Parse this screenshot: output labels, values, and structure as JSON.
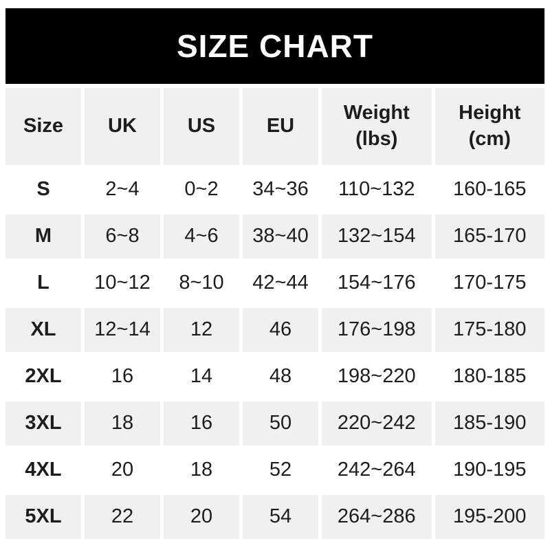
{
  "title": "SIZE CHART",
  "colors": {
    "banner_bg": "#000000",
    "banner_text": "#ffffff",
    "shaded_row_bg": "#f0f0f1",
    "row_bg": "#ffffff",
    "text": "#1d1d1f",
    "page_bg": "#ffffff"
  },
  "table": {
    "headers": [
      "Size",
      "UK",
      "US",
      "EU",
      "Weight\n(lbs)",
      "Height\n(cm)"
    ],
    "rows": [
      {
        "size": "S",
        "uk": "2~4",
        "us": "0~2",
        "eu": "34~36",
        "weight": "110~132",
        "height": "160-165"
      },
      {
        "size": "M",
        "uk": "6~8",
        "us": "4~6",
        "eu": "38~40",
        "weight": "132~154",
        "height": "165-170"
      },
      {
        "size": "L",
        "uk": "10~12",
        "us": "8~10",
        "eu": "42~44",
        "weight": "154~176",
        "height": "170-175"
      },
      {
        "size": "XL",
        "uk": "12~14",
        "us": "12",
        "eu": "46",
        "weight": "176~198",
        "height": "175-180"
      },
      {
        "size": "2XL",
        "uk": "16",
        "us": "14",
        "eu": "48",
        "weight": "198~220",
        "height": "180-185"
      },
      {
        "size": "3XL",
        "uk": "18",
        "us": "16",
        "eu": "50",
        "weight": "220~242",
        "height": "185-190"
      },
      {
        "size": "4XL",
        "uk": "20",
        "us": "18",
        "eu": "52",
        "weight": "242~264",
        "height": "190-195"
      },
      {
        "size": "5XL",
        "uk": "22",
        "us": "20",
        "eu": "54",
        "weight": "264~286",
        "height": "195-200"
      }
    ]
  },
  "chart_data": {
    "type": "table",
    "title": "SIZE CHART",
    "columns": [
      "Size",
      "UK",
      "US",
      "EU",
      "Weight (lbs)",
      "Height (cm)"
    ],
    "rows": [
      [
        "S",
        "2~4",
        "0~2",
        "34~36",
        "110~132",
        "160-165"
      ],
      [
        "M",
        "6~8",
        "4~6",
        "38~40",
        "132~154",
        "165-170"
      ],
      [
        "L",
        "10~12",
        "8~10",
        "42~44",
        "154~176",
        "170-175"
      ],
      [
        "XL",
        "12~14",
        "12",
        "46",
        "176~198",
        "175-180"
      ],
      [
        "2XL",
        "16",
        "14",
        "48",
        "198~220",
        "180-185"
      ],
      [
        "3XL",
        "18",
        "16",
        "50",
        "220~242",
        "185-190"
      ],
      [
        "4XL",
        "20",
        "18",
        "52",
        "242~264",
        "190-195"
      ],
      [
        "5XL",
        "22",
        "20",
        "54",
        "264~286",
        "195-200"
      ]
    ],
    "layout_hints": {
      "shaded_rows": [
        "header",
        "M",
        "XL",
        "3XL",
        "5XL"
      ],
      "range_separator_sizes": "~",
      "range_separator_height": "-"
    }
  }
}
